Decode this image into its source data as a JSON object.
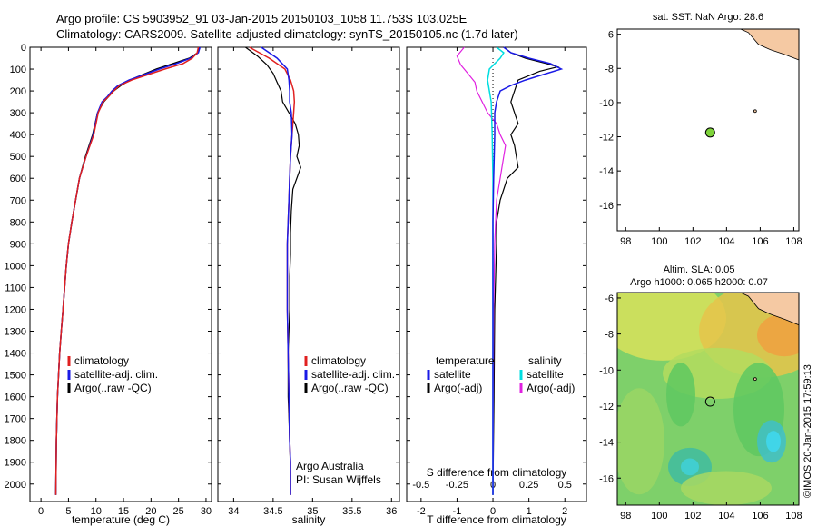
{
  "header": {
    "line1": "Argo profile: CS 5903952_91 03-Jan-2015 20150103_1058 11.753S 103.025E",
    "line2": "Climatology: CARS2009. Satellite-adjusted climatology: synTS_20150105.nc (1.7d later)"
  },
  "colors": {
    "climatology": "#e02020",
    "satellite": "#1a1ae6",
    "argo": "#000000",
    "t_satellite": "#00dde0",
    "t_argo": "#e020e0",
    "land": "#f5c9a3"
  },
  "chart_data": [
    {
      "type": "line",
      "id": "temperature",
      "xlabel": "temperature (deg C)",
      "ylabel": "",
      "xlim": [
        -2,
        31
      ],
      "ylim": [
        2080,
        0
      ],
      "xticks": [
        0,
        5,
        10,
        15,
        20,
        25,
        30
      ],
      "yticks": [
        0,
        100,
        200,
        300,
        400,
        500,
        600,
        700,
        800,
        900,
        1000,
        1100,
        1200,
        1300,
        1400,
        1500,
        1600,
        1700,
        1800,
        1900,
        2000
      ],
      "legend": [
        "climatology",
        "satellite-adj. clim.",
        "Argo(..raw -QC)"
      ],
      "series": [
        {
          "name": "climatology",
          "x": [
            28.6,
            28.4,
            27.5,
            25.8,
            22.5,
            19.5,
            16.5,
            14.3,
            13.2,
            12.3,
            11.3,
            10.4,
            9.6,
            8.2,
            7.0,
            6.3,
            5.6,
            5.0,
            4.6,
            4.3,
            4.0,
            3.7,
            3.4,
            3.2,
            3.0,
            2.8,
            2.7
          ],
          "y": [
            0,
            25,
            50,
            75,
            100,
            125,
            150,
            175,
            200,
            225,
            250,
            300,
            400,
            500,
            600,
            700,
            800,
            900,
            1000,
            1100,
            1200,
            1300,
            1400,
            1500,
            1600,
            1800,
            2050
          ]
        },
        {
          "name": "satellite-adj. clim.",
          "x": [
            28.9,
            28.6,
            27.2,
            24.6,
            21.5,
            18.8,
            16.0,
            14.0,
            12.9,
            12.1,
            11.1,
            10.3,
            9.5,
            8.2,
            7.0,
            6.3,
            5.6,
            5.0,
            4.6,
            4.3,
            4.0,
            3.7,
            3.4,
            3.2,
            3.0,
            2.8,
            2.7
          ],
          "y": [
            0,
            25,
            50,
            75,
            100,
            125,
            150,
            175,
            200,
            225,
            250,
            300,
            400,
            500,
            600,
            700,
            800,
            900,
            1000,
            1100,
            1200,
            1300,
            1400,
            1500,
            1600,
            1800,
            2050
          ]
        },
        {
          "name": "Argo(..raw -QC)",
          "x": [
            28.8,
            28.5,
            27.0,
            24.0,
            21.0,
            18.6,
            16.2,
            14.5,
            13.2,
            12.3,
            11.4,
            10.3,
            9.4,
            8.1,
            7.0,
            6.3,
            5.6,
            5.0,
            4.6,
            4.3,
            4.0,
            3.7,
            3.4,
            3.2,
            3.0,
            2.8,
            2.7
          ],
          "y": [
            0,
            25,
            50,
            75,
            100,
            125,
            150,
            175,
            200,
            225,
            250,
            300,
            400,
            500,
            600,
            700,
            800,
            900,
            1000,
            1100,
            1200,
            1300,
            1400,
            1500,
            1600,
            1800,
            2050
          ]
        }
      ]
    },
    {
      "type": "line",
      "id": "salinity",
      "xlabel": "salinity",
      "xlim": [
        33.8,
        36.1
      ],
      "ylim": [
        2080,
        0
      ],
      "xticks": [
        34,
        34.5,
        35,
        35.5,
        36
      ],
      "legend": [
        "climatology",
        "satellite-adj. clim.",
        "Argo(..raw -QC)"
      ],
      "annotation": [
        "Argo Australia",
        "PI: Susan Wijffels"
      ],
      "series": [
        {
          "name": "climatology",
          "x": [
            34.2,
            34.45,
            34.65,
            34.72,
            34.76,
            34.77,
            34.76,
            34.74,
            34.72,
            34.71,
            34.7,
            34.69,
            34.68,
            34.68,
            34.68,
            34.69,
            34.7,
            34.71,
            34.72,
            34.72,
            34.72
          ],
          "y": [
            0,
            50,
            100,
            150,
            200,
            250,
            300,
            400,
            500,
            600,
            700,
            800,
            900,
            1000,
            1200,
            1400,
            1600,
            1800,
            1900,
            2000,
            2050
          ]
        },
        {
          "name": "satellite-adj. clim.",
          "x": [
            34.35,
            34.55,
            34.68,
            34.7,
            34.71,
            34.71,
            34.73,
            34.74,
            34.72,
            34.71,
            34.7,
            34.69,
            34.68,
            34.68,
            34.68,
            34.69,
            34.7,
            34.71,
            34.72,
            34.72,
            34.72
          ],
          "y": [
            0,
            50,
            100,
            150,
            200,
            250,
            300,
            400,
            500,
            600,
            700,
            800,
            900,
            1000,
            1200,
            1400,
            1600,
            1800,
            1900,
            2000,
            2050
          ]
        },
        {
          "name": "Argo(..raw -QC)",
          "x": [
            34.15,
            34.3,
            34.42,
            34.5,
            34.55,
            34.6,
            34.62,
            34.7,
            34.78,
            34.82,
            34.83,
            34.8,
            34.85,
            34.75,
            34.73,
            34.72,
            34.72,
            34.71,
            34.71,
            34.69,
            34.69,
            34.69,
            34.7,
            34.71,
            34.72,
            34.72
          ],
          "y": [
            0,
            40,
            80,
            120,
            160,
            200,
            250,
            300,
            350,
            400,
            450,
            500,
            550,
            650,
            750,
            850,
            950,
            1050,
            1200,
            1400,
            1500,
            1600,
            1700,
            1800,
            1950,
            2050
          ]
        }
      ]
    },
    {
      "type": "line",
      "id": "difference",
      "xlabel": "T difference from climatology",
      "x2label": "S difference from climatology",
      "xlim": [
        -2.4,
        2.6
      ],
      "ylim": [
        2080,
        0
      ],
      "xticks": [
        -2,
        -1,
        0,
        1,
        2
      ],
      "xticks_s": [
        -0.5,
        -0.25,
        0,
        0.25,
        0.5
      ],
      "legend_headers": [
        "temperature",
        "salinity"
      ],
      "legend": [
        "satellite",
        "Argo(-adj)",
        "satellite",
        "Argo(-adj)"
      ],
      "series": [
        {
          "name": "temperature satellite",
          "x": [
            0.3,
            0.5,
            1.0,
            1.6,
            1.9,
            1.4,
            0.9,
            0.5,
            0.2,
            0.1,
            0.05,
            0.05,
            0.02,
            0.0,
            0.0,
            0.0,
            0.0
          ],
          "y": [
            0,
            25,
            50,
            75,
            100,
            125,
            150,
            175,
            200,
            250,
            300,
            400,
            600,
            800,
            1200,
            1600,
            2050
          ]
        },
        {
          "name": "temperature Argo(-adj)",
          "x": [
            0.3,
            0.5,
            0.9,
            1.5,
            1.8,
            1.3,
            0.7,
            0.6,
            0.5,
            0.6,
            0.7,
            0.5,
            0.6,
            0.7,
            0.4,
            0.2,
            0.1,
            0.1,
            0.05,
            0.03,
            0.0
          ],
          "y": [
            0,
            25,
            50,
            75,
            90,
            110,
            150,
            200,
            250,
            300,
            350,
            400,
            450,
            550,
            600,
            700,
            800,
            900,
            1200,
            1600,
            2050
          ]
        },
        {
          "name": "salinity satellite",
          "x": [
            0.1,
            0.3,
            0.2,
            -0.1,
            -0.15,
            -0.05,
            -0.02,
            0.0,
            0.0,
            0.0,
            0.0
          ],
          "y": [
            0,
            25,
            50,
            100,
            150,
            250,
            400,
            600,
            1000,
            1500,
            2050
          ]
        },
        {
          "name": "salinity Argo(-adj)",
          "x": [
            -0.8,
            -1.0,
            -0.9,
            -0.7,
            -0.5,
            -0.45,
            -0.3,
            -0.15,
            0.1,
            0.2,
            0.35,
            0.3,
            0.2,
            0.1,
            0.05,
            0.02,
            0.0
          ],
          "y": [
            0,
            40,
            80,
            120,
            160,
            200,
            250,
            300,
            350,
            400,
            450,
            500,
            600,
            700,
            900,
            1200,
            2050
          ]
        }
      ]
    },
    {
      "type": "scatter",
      "id": "sst-map",
      "title": "sat. SST: NaN Argo: 28.6",
      "xlim": [
        97.5,
        108.3
      ],
      "ylim": [
        -17.5,
        -5.7
      ],
      "xticks": [
        98,
        100,
        102,
        104,
        106,
        108
      ],
      "yticks": [
        -6,
        -8,
        -10,
        -12,
        -14,
        -16
      ],
      "points": [
        {
          "x": 103.025,
          "y": -11.753
        }
      ]
    },
    {
      "type": "heatmap",
      "id": "sla-map",
      "title": "Altim. SLA: 0.05",
      "subtitle": "Argo h1000: 0.065 h2000: 0.07",
      "xlim": [
        97.5,
        108.3
      ],
      "ylim": [
        -17.5,
        -5.7
      ],
      "xticks": [
        98,
        100,
        102,
        104,
        106,
        108
      ],
      "yticks": [
        -6,
        -8,
        -10,
        -12,
        -14,
        -16
      ],
      "points": [
        {
          "x": 103.025,
          "y": -11.753
        }
      ]
    }
  ],
  "credit": "©IMOS 20-Jan-2015 17:59:13"
}
